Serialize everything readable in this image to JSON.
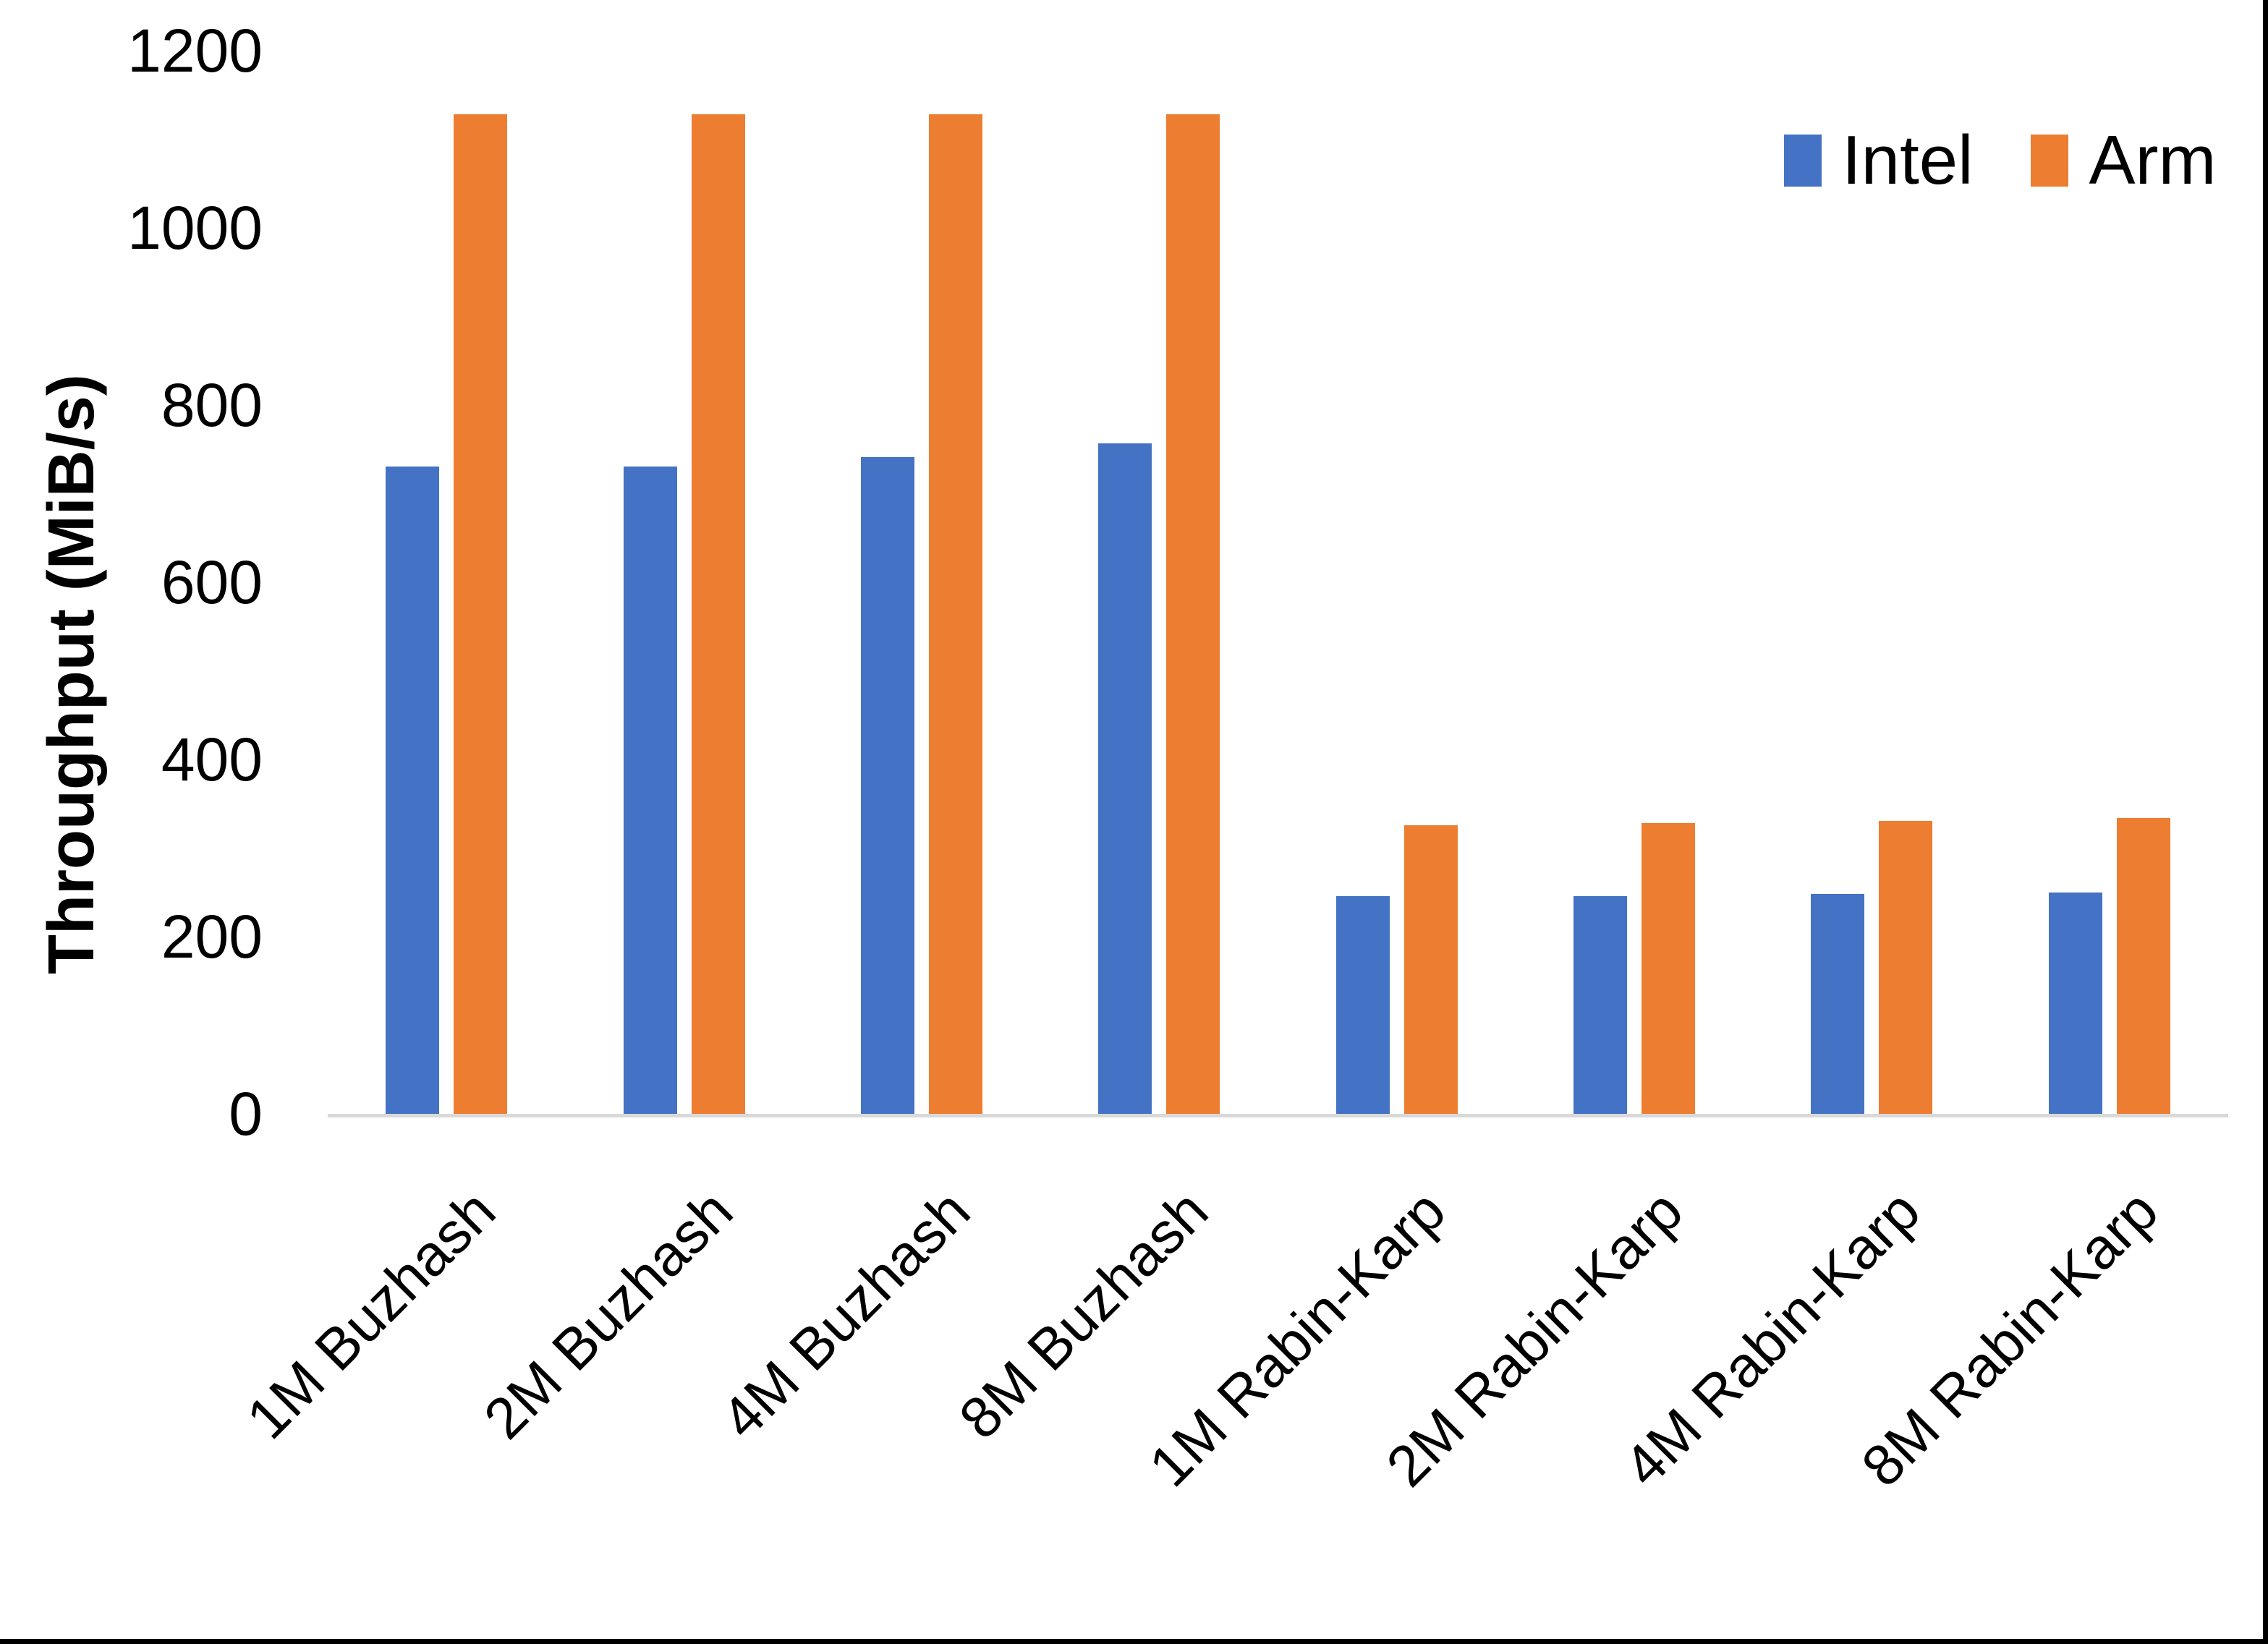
{
  "chart_data": {
    "type": "bar",
    "title": "",
    "xlabel": "",
    "ylabel": "Throughput (MiB/s)",
    "ylim": [
      0,
      1200
    ],
    "yticks": [
      0,
      200,
      400,
      600,
      800,
      1000,
      1200
    ],
    "grid": false,
    "legend_position": "top-right",
    "categories": [
      "1M Buzhash",
      "2M Buzhash",
      "4M Buzhash",
      "8M Buzhash",
      "1M Rabin-Karp",
      "2M Rabin-Karp",
      "4M Rabin-Karp",
      "8M Rabin-Karp"
    ],
    "series": [
      {
        "name": "Intel",
        "color": "#4472C4",
        "values": [
          731,
          731,
          741,
          757,
          246,
          246,
          248,
          250
        ]
      },
      {
        "name": "Arm",
        "color": "#ED7D31",
        "values": [
          1128,
          1128,
          1128,
          1128,
          326,
          328,
          331,
          334
        ]
      }
    ]
  },
  "colors": {
    "axis_line": "#D9D9D9",
    "text": "#000000",
    "frame": "#000000",
    "background": "#FFFFFF"
  }
}
